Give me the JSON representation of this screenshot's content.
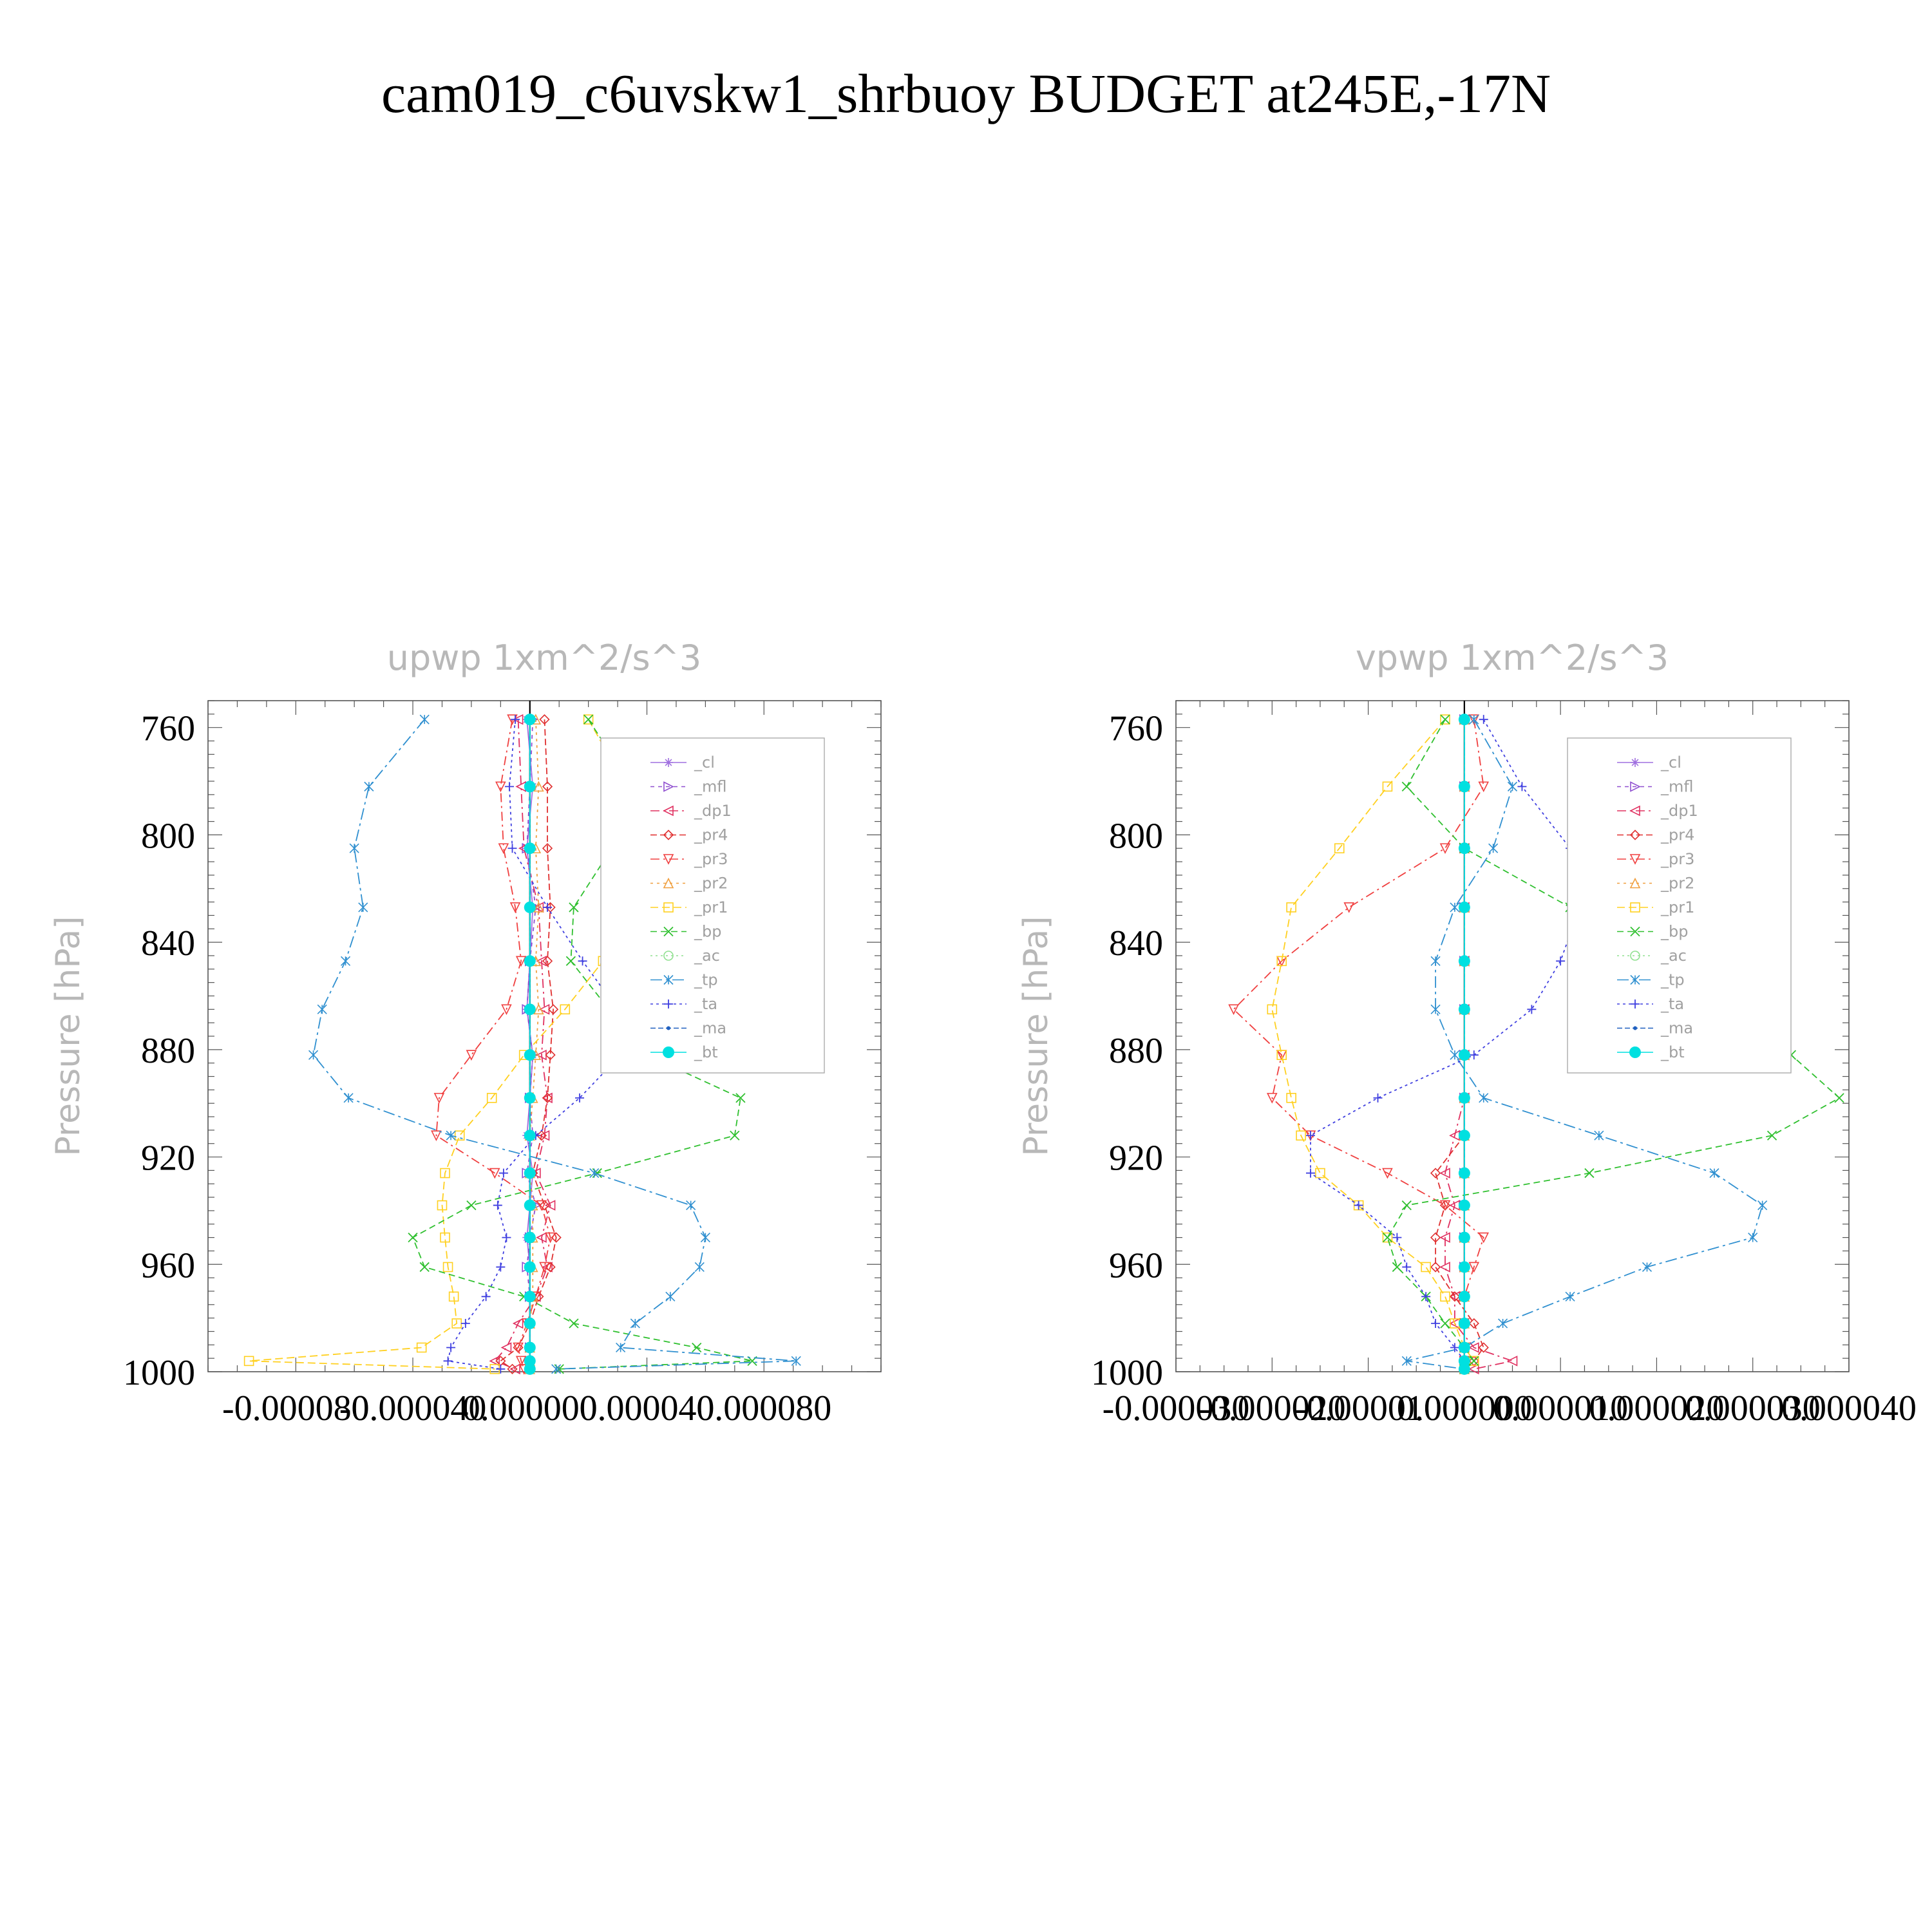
{
  "title": "cam019_c6uvskw1_shrbuoy  BUDGET at245E,-17N",
  "legend_labels": [
    "_cl",
    "_mfl",
    "_dp1",
    "_pr4",
    "_pr3",
    "_pr2",
    "_pr1",
    "_bp",
    "_ac",
    "_tp",
    "_ta",
    "_ma",
    "_bt"
  ],
  "colors": {
    "_cl": "#a070e0",
    "_mfl": "#9050d0",
    "_dp1": "#e03060",
    "_pr4": "#e03030",
    "_pr3": "#f04040",
    "_pr2": "#f0a040",
    "_pr1": "#ffd020",
    "_bp": "#30c030",
    "_ac": "#90e090",
    "_tp": "#3090d0",
    "_ta": "#4040e0",
    "_ma": "#2060c0",
    "_bt": "#00e0e0"
  },
  "chart_data": [
    {
      "type": "line",
      "title": "upwp   1xm^2/s^3",
      "ylabel": "Pressure  [hPa]",
      "xlabel": "",
      "ylim": [
        1000,
        750
      ],
      "xlim": [
        -0.00011,
        0.00012
      ],
      "yticks": [
        760,
        800,
        840,
        880,
        920,
        960,
        1000
      ],
      "xticks": [
        -8e-05,
        -4e-05,
        0.0,
        4e-05,
        8e-05
      ],
      "xtick_labels": [
        "-0.000080",
        "-0.000040",
        "0.000000",
        "0.000040",
        "0.000080"
      ],
      "levels": [
        757,
        782,
        805,
        827,
        847,
        865,
        882,
        898,
        912,
        926,
        938,
        950,
        961,
        972,
        982,
        991,
        996,
        999
      ],
      "series": [
        {
          "name": "_cl",
          "values": [
            -1e-06,
            1e-06,
            -1e-06,
            1e-06,
            0,
            -1e-06,
            1e-06,
            0,
            -1e-06,
            1e-06,
            0,
            -1e-06,
            0,
            0,
            0,
            0,
            0,
            0
          ]
        },
        {
          "name": "_mfl",
          "values": [
            1e-06,
            0,
            -1e-06,
            2e-06,
            0,
            -1e-06,
            1e-06,
            0,
            1e-06,
            -1e-06,
            2e-06,
            0,
            -1e-06,
            0,
            0,
            0,
            0,
            0
          ]
        },
        {
          "name": "_dp1",
          "values": [
            -4e-06,
            -3e-06,
            -2e-06,
            3e-06,
            4e-06,
            5e-06,
            4e-06,
            6e-06,
            5e-06,
            2e-06,
            7e-06,
            4e-06,
            6e-06,
            2e-06,
            -4e-06,
            -8e-06,
            -1.2e-05,
            -5e-06
          ]
        },
        {
          "name": "_pr4",
          "values": [
            5e-06,
            6e-06,
            6e-06,
            7e-06,
            6e-06,
            8e-06,
            7e-06,
            6e-06,
            4e-06,
            1e-06,
            5e-06,
            9e-06,
            7e-06,
            3e-06,
            0,
            -4e-06,
            -1e-05,
            -6e-06
          ]
        },
        {
          "name": "_pr3",
          "values": [
            -6e-06,
            -1e-05,
            -9e-06,
            -5e-06,
            -3e-06,
            -8e-06,
            -2e-05,
            -3.1e-05,
            -3.2e-05,
            -1.2e-05,
            4e-06,
            7e-06,
            5e-06,
            2e-06,
            -1e-06,
            -4e-06,
            -3e-06,
            -2e-06
          ]
        },
        {
          "name": "_pr2",
          "values": [
            2e-06,
            3e-06,
            2e-06,
            3e-06,
            2e-06,
            3e-06,
            2e-06,
            1e-06,
            0,
            0,
            1e-06,
            1e-06,
            1e-06,
            1e-06,
            0,
            0,
            0,
            0
          ]
        },
        {
          "name": "_pr1",
          "values": [
            2e-05,
            3.3e-05,
            3.7e-05,
            3.2e-05,
            2.5e-05,
            1.2e-05,
            -2e-06,
            -1.3e-05,
            -2.4e-05,
            -2.9e-05,
            -3e-05,
            -2.9e-05,
            -2.8e-05,
            -2.6e-05,
            -2.5e-05,
            -3.7e-05,
            -9.6e-05,
            -1.2e-05
          ]
        },
        {
          "name": "_bp",
          "values": [
            2e-05,
            3.5e-05,
            2.8e-05,
            1.5e-05,
            1.4e-05,
            2.7e-05,
            4e-05,
            7.2e-05,
            7e-05,
            2.3e-05,
            -2e-05,
            -4e-05,
            -3.6e-05,
            -2e-06,
            1.5e-05,
            5.7e-05,
            7.6e-05,
            1e-05
          ]
        },
        {
          "name": "_ac",
          "values": [
            0,
            0,
            0,
            0,
            0,
            0,
            0,
            0,
            0,
            0,
            0,
            0,
            0,
            0,
            0,
            0,
            0,
            0
          ]
        },
        {
          "name": "_tp",
          "values": [
            -3.6e-05,
            -5.5e-05,
            -6e-05,
            -5.7e-05,
            -6.3e-05,
            -7.1e-05,
            -7.4e-05,
            -6.2e-05,
            -2.7e-05,
            2.2e-05,
            5.5e-05,
            6e-05,
            5.8e-05,
            4.8e-05,
            3.6e-05,
            3.1e-05,
            9.1e-05,
            9e-06
          ]
        },
        {
          "name": "_ta",
          "values": [
            -5e-06,
            -7e-06,
            -6e-06,
            6e-06,
            1.8e-05,
            3e-05,
            3.1e-05,
            1.7e-05,
            2e-06,
            -9e-06,
            -1.1e-05,
            -8e-06,
            -1e-05,
            -1.5e-05,
            -2.2e-05,
            -2.7e-05,
            -2.8e-05,
            -1e-05
          ]
        },
        {
          "name": "_ma",
          "values": [
            0,
            0,
            0,
            0,
            0,
            0,
            0,
            0,
            0,
            0,
            0,
            0,
            0,
            0,
            0,
            0,
            0,
            0
          ]
        },
        {
          "name": "_bt",
          "values": [
            0,
            0,
            0,
            0,
            0,
            0,
            0,
            0,
            0,
            0,
            0,
            0,
            0,
            0,
            0,
            0,
            0,
            0
          ]
        }
      ]
    },
    {
      "type": "line",
      "title": "vpwp   1xm^2/s^3",
      "ylabel": "Pressure  [hPa]",
      "xlabel": "",
      "ylim": [
        1000,
        750
      ],
      "xlim": [
        -3e-05,
        4e-05
      ],
      "yticks": [
        760,
        800,
        840,
        880,
        920,
        960,
        1000
      ],
      "xticks": [
        -3e-05,
        -2e-05,
        -1e-05,
        0.0,
        1e-05,
        2e-05,
        3e-05,
        4e-05
      ],
      "xtick_labels": [
        "-0.000030",
        "-0.000020",
        "-0.000010",
        "0.000000",
        "0.000010",
        "0.000020",
        "0.000030",
        "0.000040"
      ],
      "levels": [
        757,
        782,
        805,
        827,
        847,
        865,
        882,
        898,
        912,
        926,
        938,
        950,
        961,
        972,
        982,
        991,
        996,
        999
      ],
      "series": [
        {
          "name": "_cl",
          "values": [
            0,
            0,
            0,
            0,
            0,
            0,
            0,
            0,
            0,
            0,
            0,
            0,
            0,
            0,
            0,
            0,
            0,
            0
          ]
        },
        {
          "name": "_mfl",
          "values": [
            0,
            0,
            0,
            0,
            0,
            0,
            0,
            0,
            0,
            0,
            0,
            0,
            0,
            0,
            0,
            0,
            0,
            0
          ]
        },
        {
          "name": "_dp1",
          "values": [
            0,
            0,
            0,
            0,
            0,
            0,
            0,
            0,
            -1e-06,
            -2e-06,
            -1e-06,
            -2e-06,
            -2e-06,
            -1e-06,
            -1e-06,
            1e-06,
            5e-06,
            1e-06
          ]
        },
        {
          "name": "_pr4",
          "values": [
            0,
            0,
            0,
            0,
            0,
            0,
            0,
            0,
            0,
            -3e-06,
            -2e-06,
            -3e-06,
            -3e-06,
            -1e-06,
            1e-06,
            2e-06,
            1e-06,
            0
          ]
        },
        {
          "name": "_pr3",
          "values": [
            1e-06,
            2e-06,
            -2e-06,
            -1.2e-05,
            -1.9e-05,
            -2.4e-05,
            -1.9e-05,
            -2e-05,
            -1.6e-05,
            -8e-06,
            -2e-06,
            2e-06,
            1e-06,
            0,
            0,
            0,
            0,
            0
          ]
        },
        {
          "name": "_pr2",
          "values": [
            0,
            0,
            0,
            0,
            0,
            0,
            0,
            0,
            0,
            0,
            0,
            0,
            0,
            0,
            0,
            0,
            0,
            0
          ]
        },
        {
          "name": "_pr1",
          "values": [
            -2e-06,
            -8e-06,
            -1.3e-05,
            -1.8e-05,
            -1.9e-05,
            -2e-05,
            -1.9e-05,
            -1.8e-05,
            -1.7e-05,
            -1.5e-05,
            -1.1e-05,
            -8e-06,
            -4e-06,
            -2e-06,
            -1e-06,
            0,
            1e-06,
            0
          ]
        },
        {
          "name": "_bp",
          "values": [
            -2e-06,
            -6e-06,
            0,
            1.1e-05,
            2e-05,
            2.8e-05,
            3.4e-05,
            3.9e-05,
            3.2e-05,
            1.3e-05,
            -6e-06,
            -8e-06,
            -7e-06,
            -4e-06,
            -2e-06,
            0,
            1e-06,
            0
          ]
        },
        {
          "name": "_ac",
          "values": [
            0,
            0,
            0,
            0,
            0,
            0,
            0,
            0,
            0,
            0,
            0,
            0,
            0,
            0,
            0,
            0,
            0,
            0
          ]
        },
        {
          "name": "_tp",
          "values": [
            1e-06,
            5e-06,
            3e-06,
            -1e-06,
            -3e-06,
            -3e-06,
            -1e-06,
            2e-06,
            1.4e-05,
            2.6e-05,
            3.1e-05,
            3e-05,
            1.9e-05,
            1.1e-05,
            4e-06,
            0,
            -6e-06,
            0
          ]
        },
        {
          "name": "_ta",
          "values": [
            2e-06,
            6e-06,
            1.1e-05,
            1.2e-05,
            1e-05,
            7e-06,
            1e-06,
            -9e-06,
            -1.6e-05,
            -1.6e-05,
            -1.1e-05,
            -7e-06,
            -6e-06,
            -4e-06,
            -3e-06,
            -1e-06,
            0,
            0
          ]
        },
        {
          "name": "_ma",
          "values": [
            0,
            0,
            0,
            0,
            0,
            0,
            0,
            0,
            0,
            0,
            0,
            0,
            0,
            0,
            0,
            0,
            0,
            0
          ]
        },
        {
          "name": "_bt",
          "values": [
            0,
            0,
            0,
            0,
            0,
            0,
            0,
            0,
            0,
            0,
            0,
            0,
            0,
            0,
            0,
            0,
            0,
            0
          ]
        }
      ]
    }
  ]
}
